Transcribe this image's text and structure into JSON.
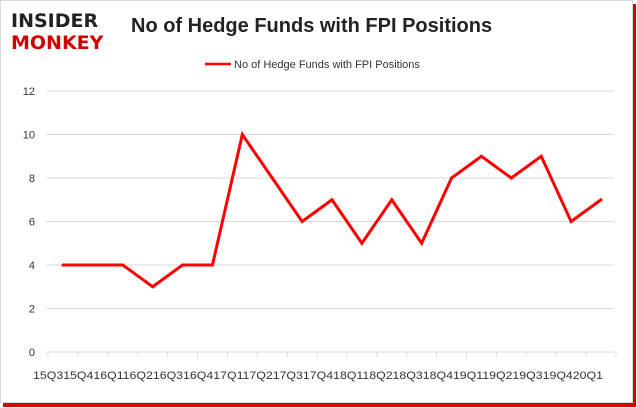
{
  "brand": {
    "logo_line1": "INSIDER",
    "logo_line2": "MONKEY",
    "logo_color_dark": "#222222",
    "logo_color_red": "#d40000"
  },
  "chart_data": {
    "type": "line",
    "title": "No of Hedge Funds with FPI Positions",
    "xlabel": "",
    "ylabel": "",
    "categories": [
      "2015Q3",
      "2015Q4",
      "2016Q1",
      "2016Q2",
      "2016Q3",
      "2016Q4",
      "2017Q1",
      "2017Q2",
      "2017Q3",
      "2017Q4",
      "2018Q1",
      "2018Q2",
      "2018Q3",
      "2018Q4",
      "2019Q1",
      "2019Q2",
      "2019Q3",
      "2019Q4",
      "2020Q1"
    ],
    "x_tick_label_text": "15Q315Q416Q116Q216Q316Q417Q117Q217Q317Q418Q118Q218Q318Q419Q119Q219Q319Q420Q1",
    "series": [
      {
        "name": "No of Hedge Funds with FPI Positions",
        "color": "#ff0000",
        "values": [
          4,
          4,
          4,
          3,
          4,
          4,
          10,
          8,
          6,
          7,
          5,
          7,
          5,
          8,
          9,
          8,
          9,
          6,
          7
        ]
      }
    ],
    "ylim": [
      0,
      12
    ],
    "yticks": [
      0,
      2,
      4,
      6,
      8,
      10,
      12
    ],
    "grid": true,
    "legend": "top-center"
  }
}
